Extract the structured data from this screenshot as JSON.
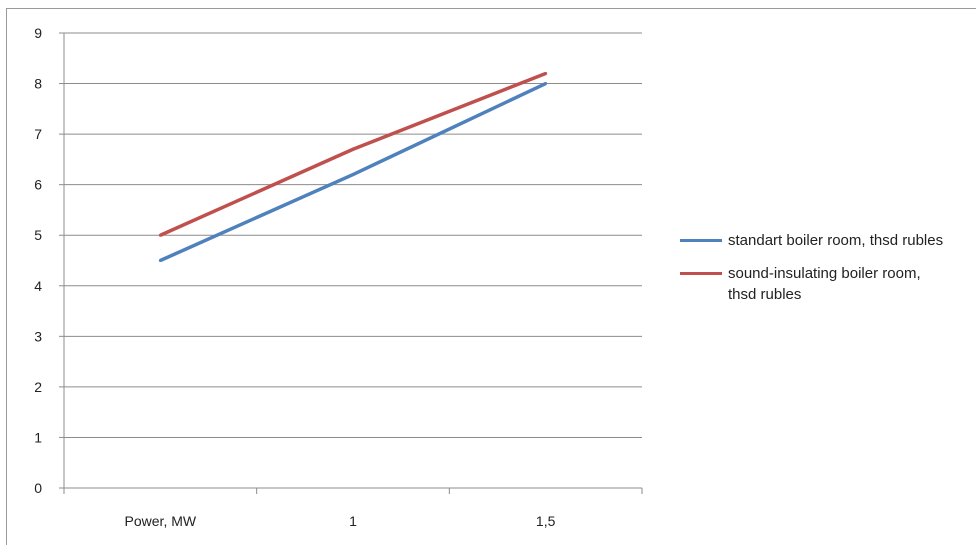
{
  "chart_data": {
    "type": "line",
    "categories": [
      "Power, MW",
      "1",
      "1,5"
    ],
    "series": [
      {
        "name": "standart boiler room, thsd rubles",
        "values": [
          4.5,
          6.2,
          8.0
        ],
        "color": "#4f81bd"
      },
      {
        "name": "sound-insulating boiler room, thsd rubles",
        "values": [
          5.0,
          6.7,
          8.2
        ],
        "color": "#c0504d"
      }
    ],
    "ylim": [
      0,
      9
    ],
    "yticks": [
      "0",
      "1",
      "2",
      "3",
      "4",
      "5",
      "6",
      "7",
      "8",
      "9"
    ],
    "grid": true,
    "legend_position": "right"
  }
}
